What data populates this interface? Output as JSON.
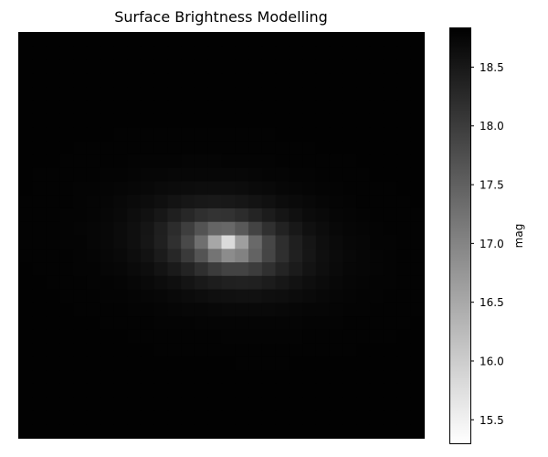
{
  "chart_data": {
    "type": "heatmap",
    "title": "Surface Brightness Modelling",
    "xlabel": "",
    "ylabel": "",
    "grid": false,
    "colormap": "gray_r",
    "nx": 30,
    "ny": 30,
    "model": {
      "center_col": 15.0,
      "center_row": 15.2,
      "core_mag": 15.3,
      "edge_mag": 18.8,
      "axis_ratio": 0.55,
      "position_angle_deg": 8,
      "scale": 0.42
    },
    "colorbar": {
      "label": "mag",
      "min": 15.3,
      "max": 18.83,
      "ticks": [
        "15.5",
        "16.0",
        "16.5",
        "17.0",
        "17.5",
        "18.0",
        "18.5"
      ],
      "tick_values": [
        15.5,
        16.0,
        16.5,
        17.0,
        17.5,
        18.0,
        18.5
      ]
    }
  }
}
